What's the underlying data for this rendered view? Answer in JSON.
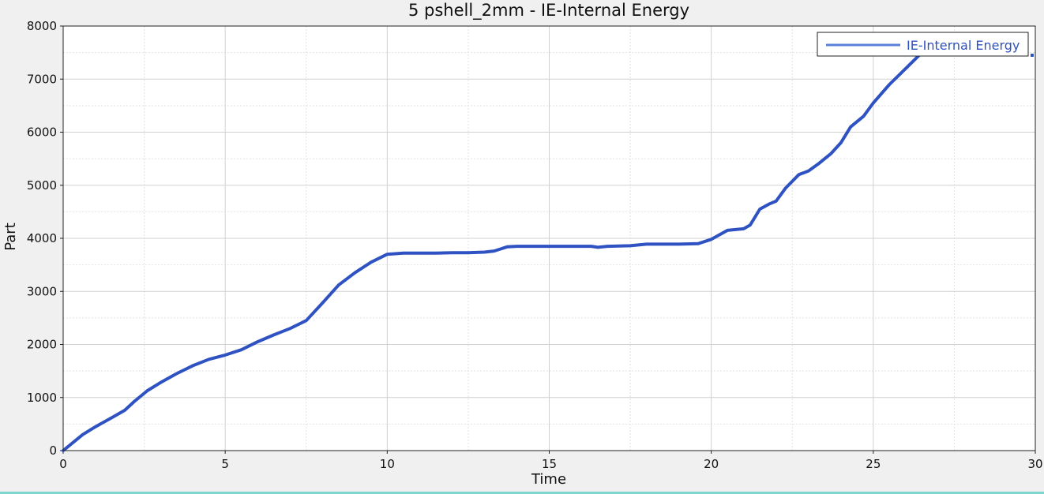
{
  "chart_data": {
    "type": "line",
    "title": "5 pshell_2mm - IE-Internal Energy",
    "xlabel": "Time",
    "ylabel": "Part",
    "xlim": [
      0,
      30
    ],
    "ylim": [
      0,
      8000
    ],
    "x_ticks": [
      0,
      5,
      10,
      15,
      20,
      25,
      30
    ],
    "y_ticks": [
      0,
      1000,
      2000,
      3000,
      4000,
      5000,
      6000,
      7000,
      8000
    ],
    "grid": true,
    "legend_position": "top-right",
    "series": [
      {
        "name": "IE-Internal Energy",
        "color": "#2f52c2",
        "points": [
          [
            0,
            0
          ],
          [
            0.3,
            150
          ],
          [
            0.6,
            300
          ],
          [
            1.0,
            450
          ],
          [
            1.5,
            620
          ],
          [
            1.9,
            760
          ],
          [
            2.2,
            930
          ],
          [
            2.6,
            1130
          ],
          [
            3.0,
            1280
          ],
          [
            3.5,
            1450
          ],
          [
            4.0,
            1600
          ],
          [
            4.5,
            1720
          ],
          [
            5.0,
            1800
          ],
          [
            5.5,
            1900
          ],
          [
            6.0,
            2050
          ],
          [
            6.5,
            2180
          ],
          [
            7.0,
            2300
          ],
          [
            7.5,
            2450
          ],
          [
            8.0,
            2780
          ],
          [
            8.5,
            3120
          ],
          [
            9.0,
            3350
          ],
          [
            9.5,
            3550
          ],
          [
            10.0,
            3700
          ],
          [
            10.5,
            3720
          ],
          [
            11.0,
            3720
          ],
          [
            11.5,
            3720
          ],
          [
            12.0,
            3730
          ],
          [
            12.5,
            3730
          ],
          [
            13.0,
            3740
          ],
          [
            13.3,
            3760
          ],
          [
            13.7,
            3840
          ],
          [
            14.0,
            3850
          ],
          [
            15.0,
            3850
          ],
          [
            16.0,
            3850
          ],
          [
            16.3,
            3850
          ],
          [
            16.5,
            3830
          ],
          [
            16.8,
            3850
          ],
          [
            17.5,
            3860
          ],
          [
            18.0,
            3890
          ],
          [
            19.0,
            3890
          ],
          [
            19.6,
            3900
          ],
          [
            20.0,
            3980
          ],
          [
            20.5,
            4150
          ],
          [
            21.0,
            4180
          ],
          [
            21.2,
            4250
          ],
          [
            21.5,
            4550
          ],
          [
            21.8,
            4650
          ],
          [
            22.0,
            4700
          ],
          [
            22.3,
            4950
          ],
          [
            22.7,
            5200
          ],
          [
            23.0,
            5270
          ],
          [
            23.3,
            5400
          ],
          [
            23.7,
            5600
          ],
          [
            24.0,
            5800
          ],
          [
            24.3,
            6100
          ],
          [
            24.7,
            6300
          ],
          [
            25.0,
            6550
          ],
          [
            25.5,
            6900
          ],
          [
            26.0,
            7200
          ],
          [
            26.5,
            7500
          ],
          [
            27.0,
            7650
          ]
        ],
        "end_marker": [
          29.95,
          7450
        ]
      }
    ]
  }
}
